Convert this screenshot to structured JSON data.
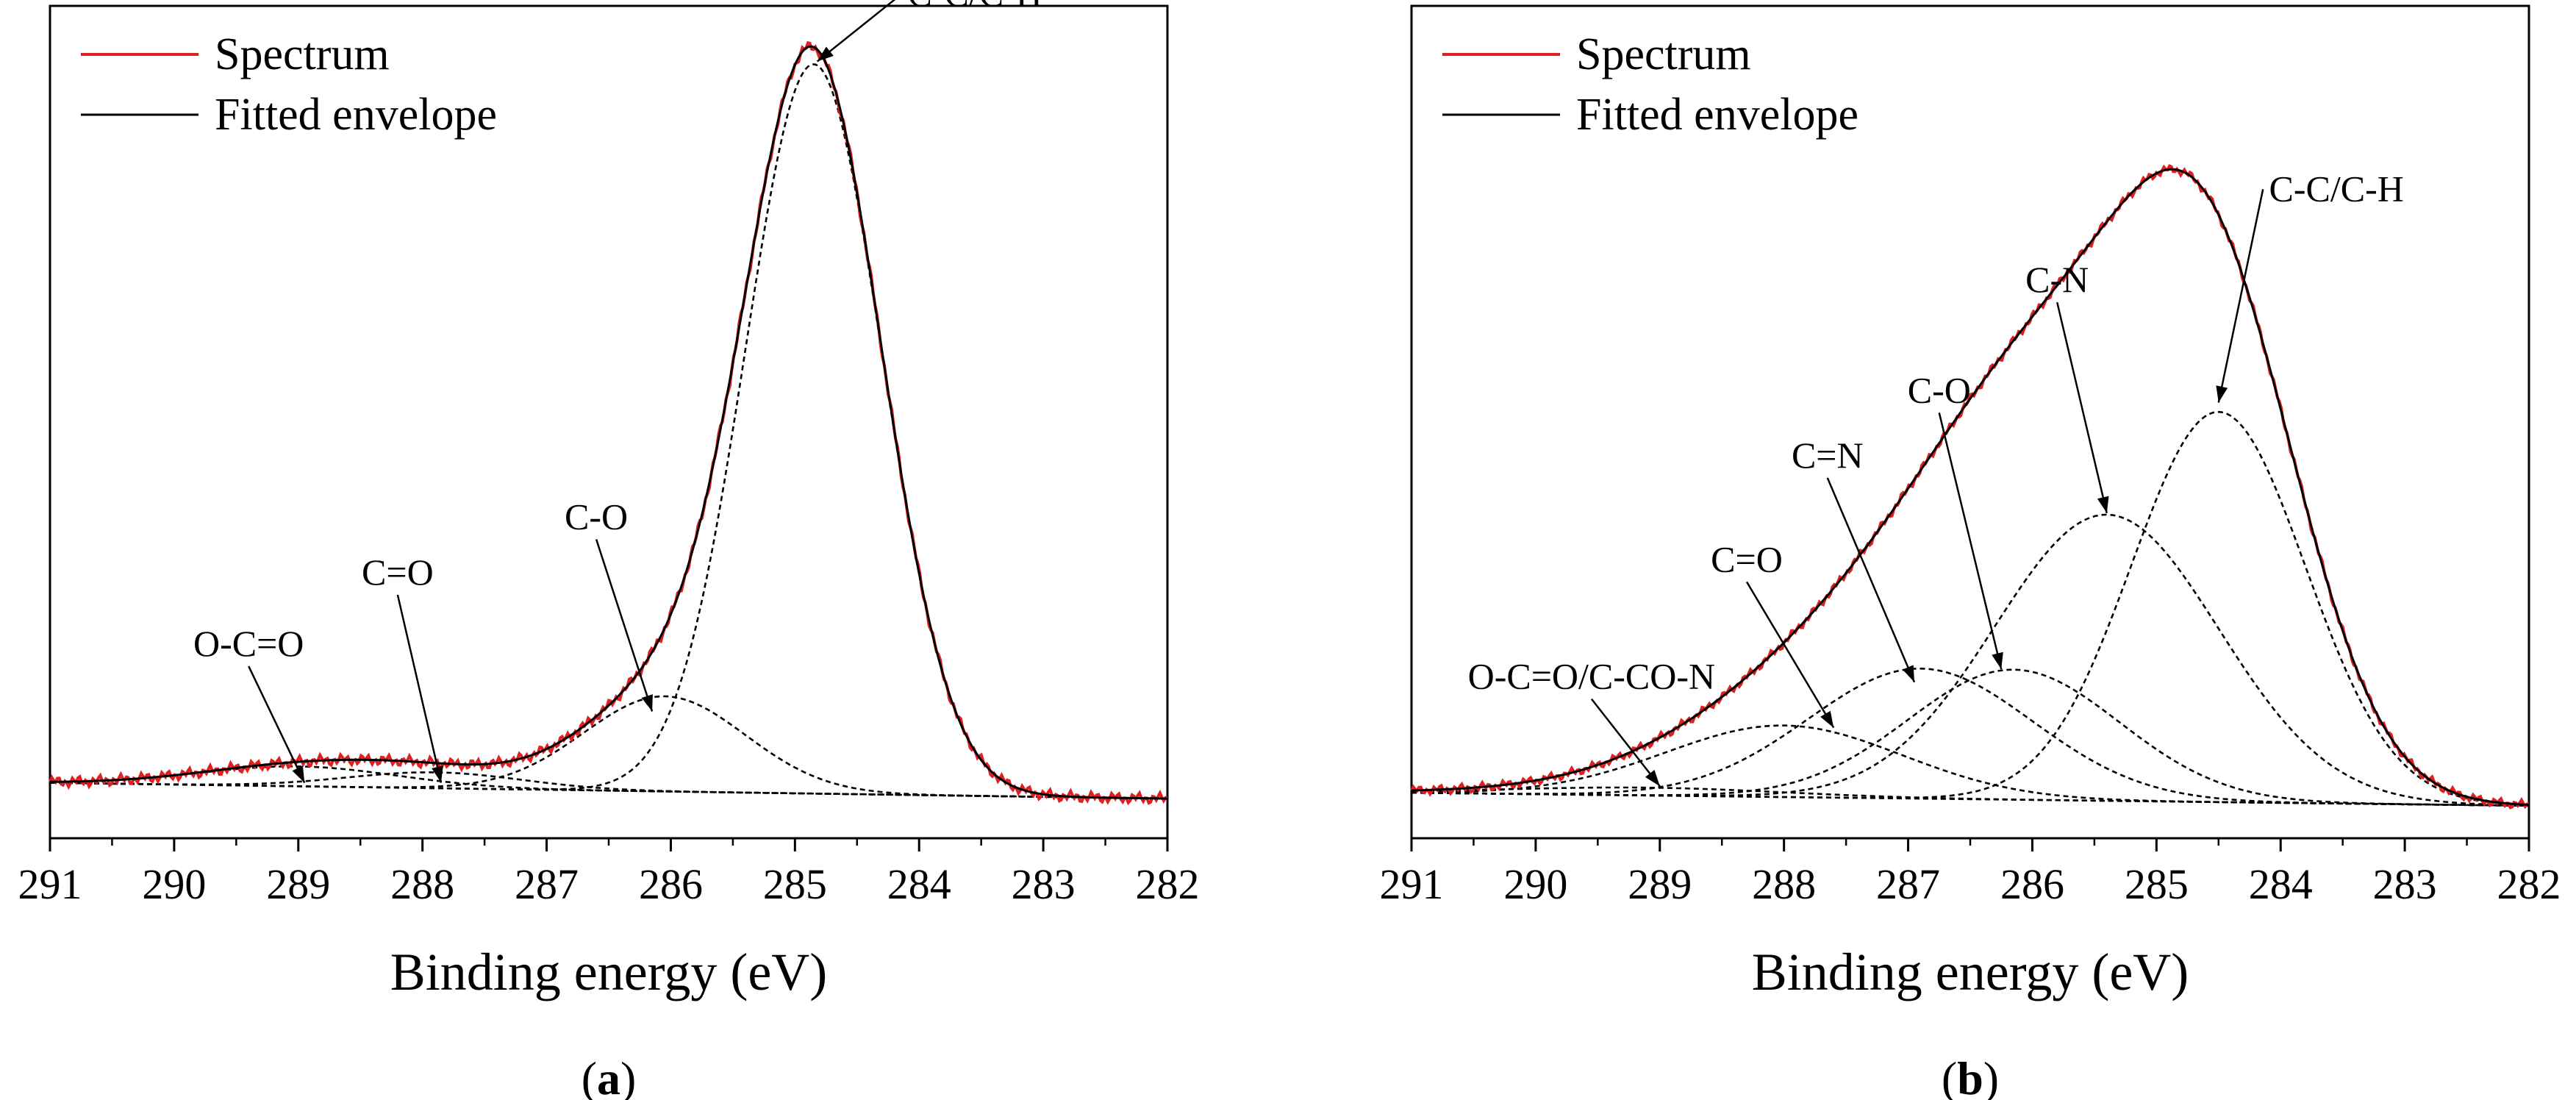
{
  "chart_data": [
    {
      "type": "line",
      "panel_label_open": "(",
      "panel_letter": "a",
      "panel_label_close": ")",
      "xlabel": "Binding energy (eV)",
      "xlim": [
        291,
        282
      ],
      "x_ticks": [
        "291",
        "290",
        "289",
        "288",
        "287",
        "286",
        "285",
        "284",
        "283",
        "282"
      ],
      "grid": false,
      "legend": {
        "placement": "top-left",
        "entries": [
          "Spectrum",
          "Fitted envelope"
        ]
      },
      "colors": {
        "spectrum": "#e02020",
        "envelope": "#000000",
        "component": "#000000"
      },
      "baseline": {
        "left": 0.02,
        "right": 0.0
      },
      "components": [
        {
          "name": "O-C=O",
          "center": 289.0,
          "height": 0.025,
          "width": 0.8
        },
        {
          "name": "C=O",
          "center": 287.9,
          "height": 0.02,
          "width": 0.7
        },
        {
          "name": "C-O",
          "center": 286.05,
          "height": 0.12,
          "width": 0.65
        },
        {
          "name": "C-C/C-H",
          "center": 284.85,
          "height": 0.92,
          "width": 0.55
        }
      ],
      "annotations": [
        {
          "text": "C-C/C-H",
          "x": 283.55,
          "y": 1.0,
          "arrow_to": [
            284.82,
            0.93
          ]
        },
        {
          "text": "C-O",
          "x": 286.6,
          "y": 0.34,
          "arrow_to": [
            286.15,
            0.11
          ]
        },
        {
          "text": "C=O",
          "x": 288.2,
          "y": 0.27,
          "arrow_to": [
            287.85,
            0.02
          ]
        },
        {
          "text": "O-C=O",
          "x": 289.4,
          "y": 0.18,
          "arrow_to": [
            288.95,
            0.02
          ]
        }
      ]
    },
    {
      "type": "line",
      "panel_label_open": "(",
      "panel_letter": "b",
      "panel_label_close": ")",
      "xlabel": "Binding energy (eV)",
      "xlim": [
        291,
        282
      ],
      "x_ticks": [
        "291",
        "290",
        "289",
        "288",
        "287",
        "286",
        "285",
        "284",
        "283",
        "282"
      ],
      "grid": false,
      "legend": {
        "placement": "top-left",
        "entries": [
          "Spectrum",
          "Fitted envelope"
        ]
      },
      "colors": {
        "spectrum": "#e02020",
        "envelope": "#000000",
        "component": "#000000"
      },
      "baseline": {
        "left": 0.02,
        "right": 0.0
      },
      "components": [
        {
          "name": "O-C=O/C-CO-N",
          "center": 289.1,
          "height": 0.012,
          "width": 1.1
        },
        {
          "name": "C=O",
          "center": 288.0,
          "height": 0.11,
          "width": 0.95
        },
        {
          "name": "C=N",
          "center": 286.9,
          "height": 0.2,
          "width": 0.9
        },
        {
          "name": "C-O",
          "center": 286.15,
          "height": 0.2,
          "width": 0.85
        },
        {
          "name": "C-N",
          "center": 285.4,
          "height": 0.44,
          "width": 0.9
        },
        {
          "name": "C-C/C-H",
          "center": 284.5,
          "height": 0.6,
          "width": 0.7
        }
      ],
      "annotations": [
        {
          "text": "C-C/C-H",
          "x": 283.55,
          "y": 0.93,
          "arrow_to": [
            284.5,
            0.62
          ]
        },
        {
          "text": "C-N",
          "x": 285.8,
          "y": 0.79,
          "arrow_to": [
            285.4,
            0.45
          ]
        },
        {
          "text": "C-O",
          "x": 286.75,
          "y": 0.62,
          "arrow_to": [
            286.25,
            0.21
          ]
        },
        {
          "text": "C=N",
          "x": 287.65,
          "y": 0.52,
          "arrow_to": [
            286.95,
            0.19
          ]
        },
        {
          "text": "C=O",
          "x": 288.3,
          "y": 0.36,
          "arrow_to": [
            287.6,
            0.12
          ]
        },
        {
          "text": "O-C=O/C-CO-N",
          "x": 289.55,
          "y": 0.18,
          "arrow_to": [
            289.0,
            0.03
          ]
        }
      ]
    }
  ]
}
